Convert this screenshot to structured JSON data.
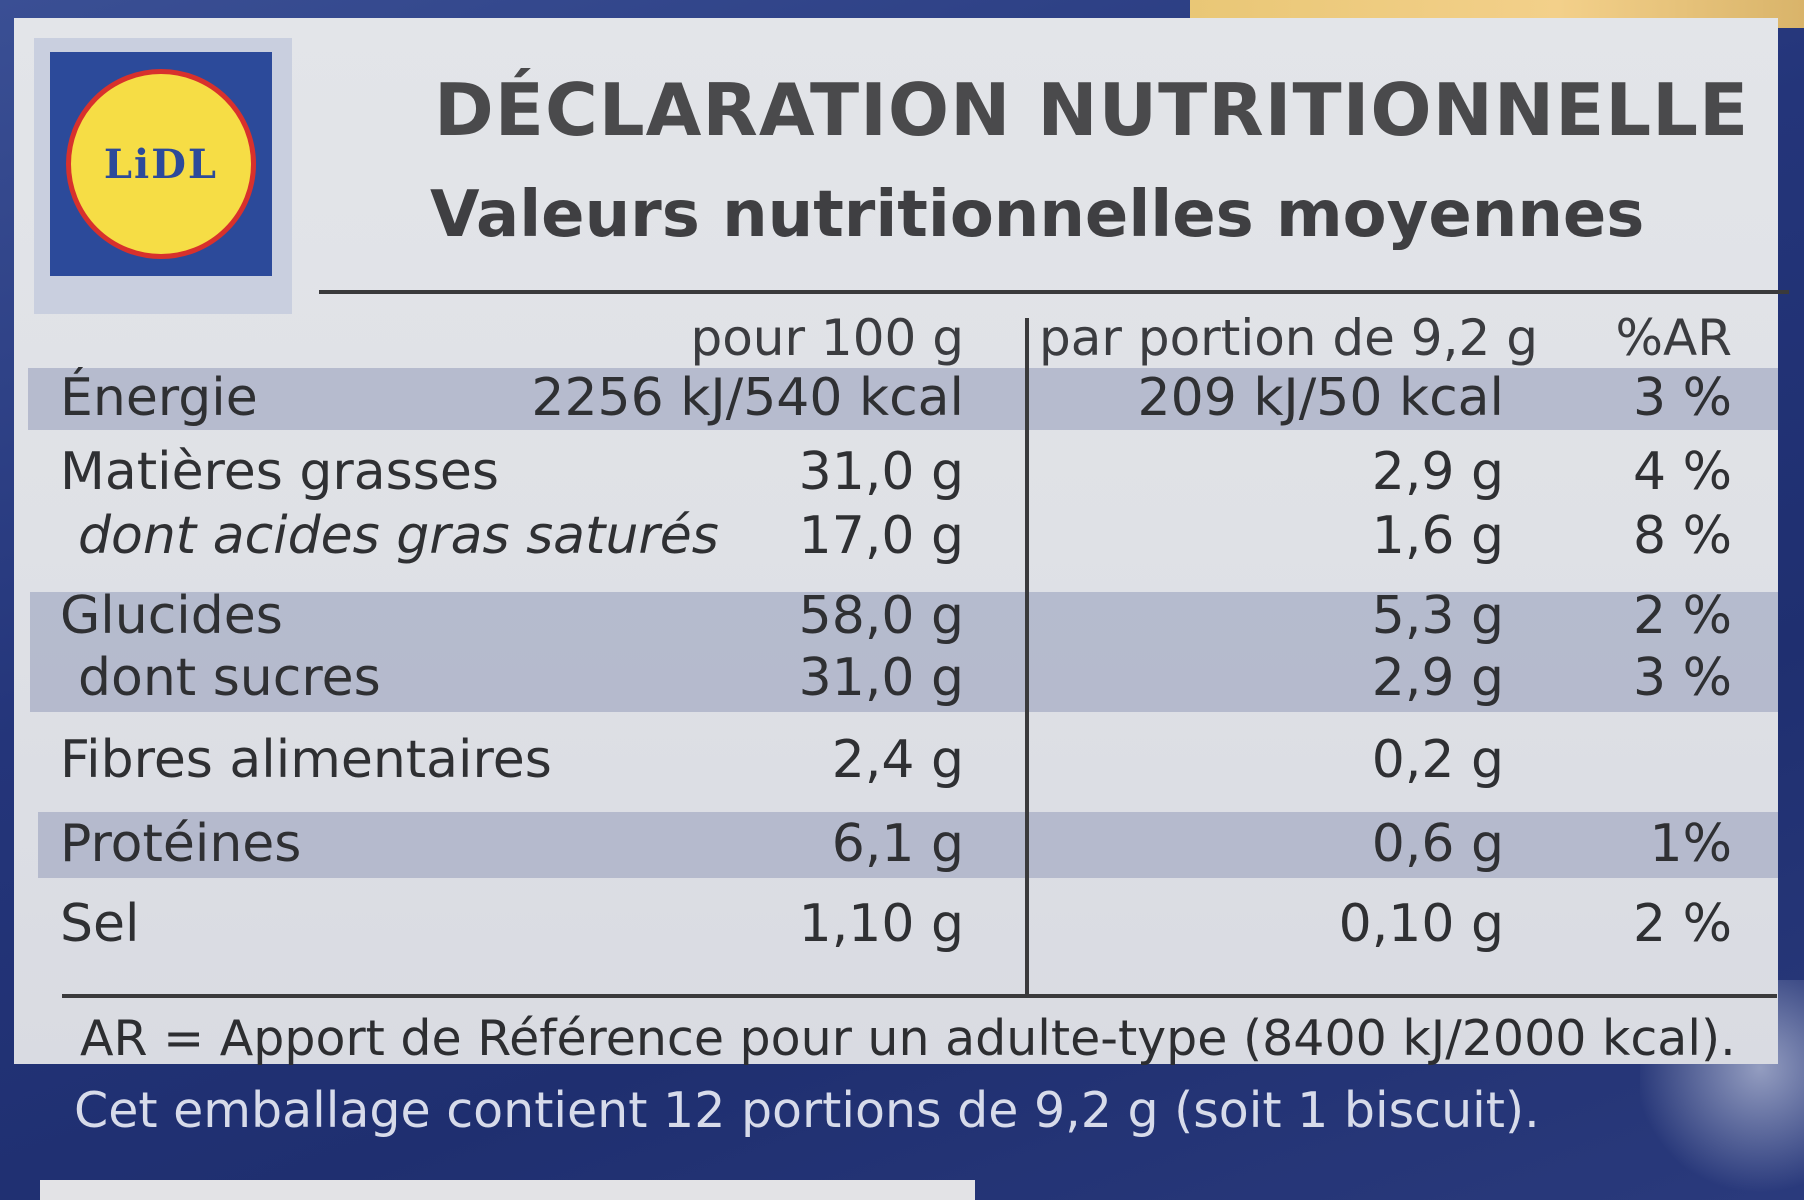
{
  "brand": {
    "logo_text": "LiDL"
  },
  "title": "DÉCLARATION NUTRITIONNELLE",
  "subtitle": "Valeurs nutritionnelles moyennes",
  "table": {
    "headers": {
      "per100": "pour 100 g",
      "portion": "par portion de 9,2 g",
      "ar": "%AR"
    },
    "rows": [
      {
        "label": "Énergie",
        "per100": "2256 kJ/540 kcal",
        "portion": "209 kJ/50 kcal",
        "ar": "3 %"
      },
      {
        "label": "Matières grasses",
        "per100": "31,0 g",
        "portion": "2,9 g",
        "ar": "4 %"
      },
      {
        "label": "dont acides gras saturés",
        "per100": "17,0 g",
        "portion": "1,6 g",
        "ar": "8 %"
      },
      {
        "label": "Glucides",
        "per100": "58,0 g",
        "portion": "5,3 g",
        "ar": "2 %"
      },
      {
        "label": "dont sucres",
        "per100": "31,0 g",
        "portion": "2,9 g",
        "ar": "3 %"
      },
      {
        "label": "Fibres alimentaires",
        "per100": "2,4 g",
        "portion": "0,2 g",
        "ar": ""
      },
      {
        "label": "Protéines",
        "per100": "6,1 g",
        "portion": "0,6 g",
        "ar": "1%"
      },
      {
        "label": "Sel",
        "per100": "1,10 g",
        "portion": "0,10 g",
        "ar": "2 %"
      }
    ]
  },
  "footnote": "AR = Apport de Référence pour un adulte-type (8400 kJ/2000 kcal).",
  "package_note": "Cet emballage contient 12 portions de 9,2 g (soit 1 biscuit).",
  "colors": {
    "panel": "#e0e2e7",
    "band": "#aeb4c9",
    "brand_blue": "#2c4a9a",
    "brand_yellow": "#f6dd45",
    "brand_red": "#d8312c"
  }
}
